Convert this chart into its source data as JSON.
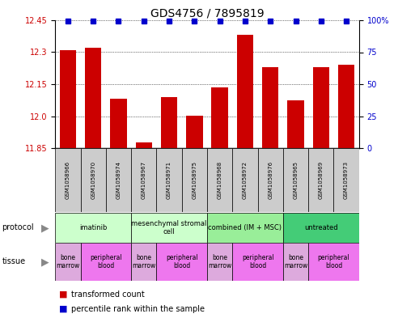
{
  "title": "GDS4756 / 7895819",
  "samples": [
    "GSM1058966",
    "GSM1058970",
    "GSM1058974",
    "GSM1058967",
    "GSM1058971",
    "GSM1058975",
    "GSM1058968",
    "GSM1058972",
    "GSM1058976",
    "GSM1058965",
    "GSM1058969",
    "GSM1058973"
  ],
  "bar_values": [
    12.31,
    12.32,
    12.08,
    11.875,
    12.09,
    12.0,
    12.135,
    12.38,
    12.23,
    12.075,
    12.23,
    12.24
  ],
  "percentile_values": [
    100,
    100,
    100,
    100,
    100,
    100,
    100,
    100,
    100,
    100,
    100,
    100
  ],
  "ylim_left": [
    11.85,
    12.45
  ],
  "ylim_right": [
    0,
    100
  ],
  "yticks_left": [
    11.85,
    12.0,
    12.15,
    12.3,
    12.45
  ],
  "yticks_right": [
    0,
    25,
    50,
    75,
    100
  ],
  "ytick_labels_right": [
    "0",
    "25",
    "50",
    "75",
    "100%"
  ],
  "bar_color": "#cc0000",
  "percentile_color": "#0000cc",
  "bg_color": "#ffffff",
  "grid_color": "#000000",
  "sample_box_color": "#cccccc",
  "protocols": [
    {
      "label": "imatinib",
      "start": 0,
      "end": 3,
      "color": "#ccffcc"
    },
    {
      "label": "mesenchymal stromal\ncell",
      "start": 3,
      "end": 6,
      "color": "#ccffcc"
    },
    {
      "label": "combined (IM + MSC)",
      "start": 6,
      "end": 9,
      "color": "#99ee99"
    },
    {
      "label": "untreated",
      "start": 9,
      "end": 12,
      "color": "#44cc77"
    }
  ],
  "tissues": [
    {
      "label": "bone\nmarrow",
      "start": 0,
      "end": 1,
      "color": "#ddaadd"
    },
    {
      "label": "peripheral\nblood",
      "start": 1,
      "end": 3,
      "color": "#ee77ee"
    },
    {
      "label": "bone\nmarrow",
      "start": 3,
      "end": 4,
      "color": "#ddaadd"
    },
    {
      "label": "peripheral\nblood",
      "start": 4,
      "end": 6,
      "color": "#ee77ee"
    },
    {
      "label": "bone\nmarrow",
      "start": 6,
      "end": 7,
      "color": "#ddaadd"
    },
    {
      "label": "peripheral\nblood",
      "start": 7,
      "end": 9,
      "color": "#ee77ee"
    },
    {
      "label": "bone\nmarrow",
      "start": 9,
      "end": 10,
      "color": "#ddaadd"
    },
    {
      "label": "peripheral\nblood",
      "start": 10,
      "end": 12,
      "color": "#ee77ee"
    }
  ],
  "legend_items": [
    {
      "label": "transformed count",
      "color": "#cc0000"
    },
    {
      "label": "percentile rank within the sample",
      "color": "#0000cc"
    }
  ],
  "fig_width": 5.13,
  "fig_height": 3.93,
  "dpi": 100
}
